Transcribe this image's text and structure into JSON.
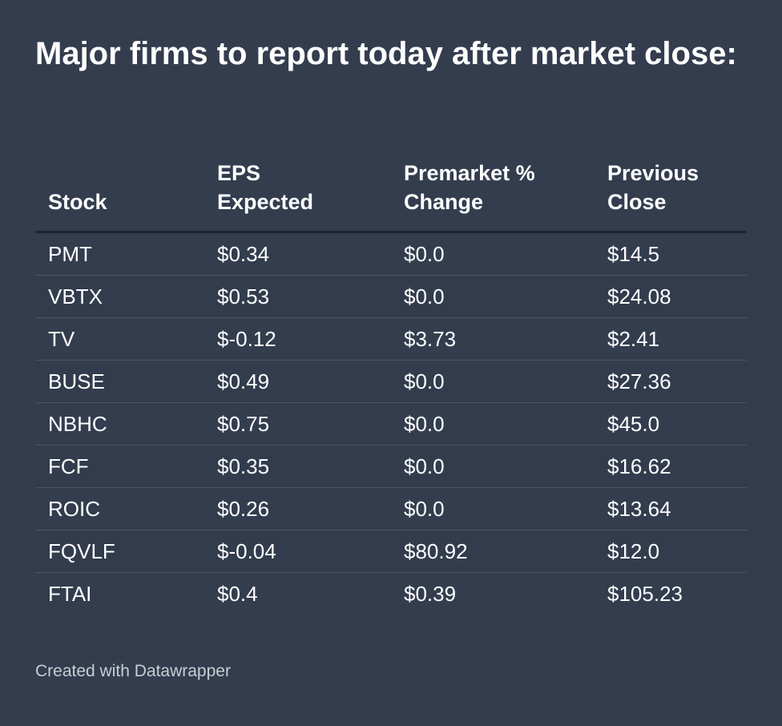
{
  "title": "Major firms to report today after market close:",
  "footer": "Created with Datawrapper",
  "colors": {
    "background": "#333d4e",
    "text": "#ffffff",
    "header_rule": "#1e2430",
    "row_divider": "#4a5466",
    "footer_text": "#c9ccd2"
  },
  "chart_data": {
    "type": "table",
    "title": "Major firms to report today after market close:",
    "columns": [
      {
        "label_line1": "",
        "label_line2": "Stock"
      },
      {
        "label_line1": "EPS",
        "label_line2": "Expected"
      },
      {
        "label_line1": "Premarket %",
        "label_line2": "Change"
      },
      {
        "label_line1": "Previous",
        "label_line2": "Close"
      }
    ],
    "rows": [
      [
        "PMT",
        "$0.34",
        "$0.0",
        "$14.5"
      ],
      [
        "VBTX",
        "$0.53",
        "$0.0",
        "$24.08"
      ],
      [
        "TV",
        "$-0.12",
        "$3.73",
        "$2.41"
      ],
      [
        "BUSE",
        "$0.49",
        "$0.0",
        "$27.36"
      ],
      [
        "NBHC",
        "$0.75",
        "$0.0",
        "$45.0"
      ],
      [
        "FCF",
        "$0.35",
        "$0.0",
        "$16.62"
      ],
      [
        "ROIC",
        "$0.26",
        "$0.0",
        "$13.64"
      ],
      [
        "FQVLF",
        "$-0.04",
        "$80.92",
        "$12.0"
      ],
      [
        "FTAI",
        "$0.4",
        "$0.39",
        "$105.23"
      ]
    ]
  }
}
